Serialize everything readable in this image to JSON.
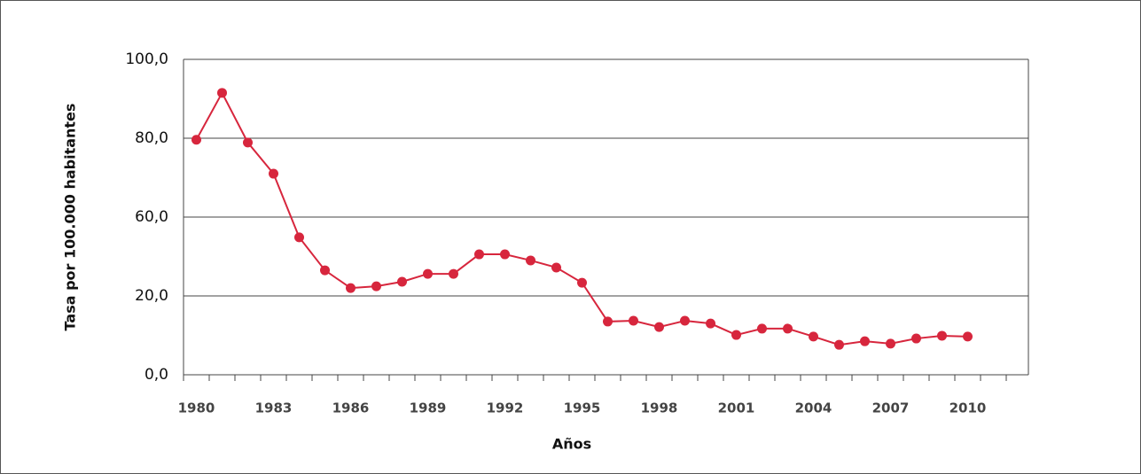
{
  "chart_data": {
    "type": "line",
    "ylabel": "Tasa por 100.000 habitantes",
    "xlabel": "Años",
    "categories": [
      "1980",
      null,
      null,
      "1983",
      null,
      null,
      "1986",
      null,
      null,
      "1989",
      null,
      null,
      "1992",
      null,
      null,
      "1995",
      null,
      null,
      "1998",
      null,
      null,
      "2001",
      null,
      null,
      "2004",
      null,
      null,
      "2007",
      null,
      null,
      "2010"
    ],
    "series": [
      {
        "color": "#d7263d",
        "values": [
          79.6,
          91.5,
          78.9,
          71.0,
          49.7,
          33.0,
          24.0,
          24.9,
          27.2,
          31.2,
          31.2,
          41.1,
          41.1,
          38.0,
          34.4,
          26.7,
          13.5,
          13.7,
          12.1,
          13.7,
          13.0,
          10.1,
          11.7,
          11.7,
          9.7,
          7.6,
          8.5,
          7.9,
          9.2,
          9.9,
          9.7
        ]
      }
    ],
    "ylim": [
      0,
      100
    ],
    "yticks": [
      {
        "value": 0,
        "label": "0,0"
      },
      {
        "value": 20,
        "label": "20,0"
      },
      {
        "value": 60,
        "label": "60,0"
      },
      {
        "value": 80,
        "label": "80,0"
      },
      {
        "value": 100,
        "label": "100,0"
      }
    ],
    "grid": true
  }
}
